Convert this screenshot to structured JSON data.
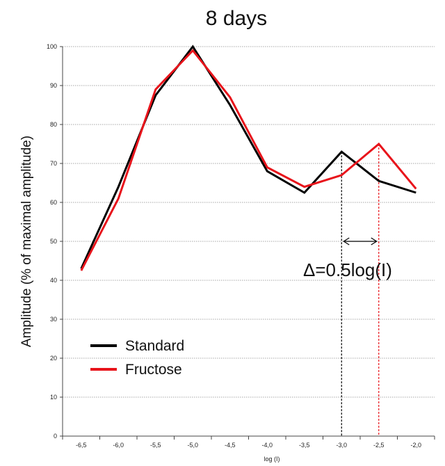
{
  "chart_data": {
    "type": "line",
    "title": "8 days",
    "xlabel": "log (I)",
    "ylabel": "Amplitude (% of maximal amplitude)",
    "x": [
      -6.5,
      -6.0,
      -5.5,
      -5.0,
      -4.5,
      -4.0,
      -3.5,
      -3.0,
      -2.5,
      -2.0
    ],
    "x_tick_labels": [
      "-6,5",
      "-6,0",
      "-5,5",
      "-5,0",
      "-4,5",
      "-4,0",
      "-3,5",
      "-3,0",
      "-2,5",
      "-2,0"
    ],
    "xlim": [
      -6.75,
      -1.75
    ],
    "ylim": [
      0,
      100
    ],
    "y_ticks": [
      0,
      10,
      20,
      30,
      40,
      50,
      60,
      70,
      80,
      90,
      100
    ],
    "grid": true,
    "legend_position": "bottom-left",
    "series": [
      {
        "name": "Standard",
        "color": "#000000",
        "values": [
          43,
          64,
          87.5,
          100,
          85,
          68,
          62.5,
          73,
          65.5,
          62.5
        ]
      },
      {
        "name": "Fructose",
        "color": "#e8141b",
        "values": [
          42.5,
          61,
          89,
          99,
          87,
          69,
          64,
          67,
          75,
          63.5
        ]
      }
    ],
    "annotations": {
      "delta_text": "Δ=0.5log(I)",
      "standard_peak_x": -3.0,
      "fructose_peak_x": -2.5,
      "arrow_y": 50
    }
  }
}
